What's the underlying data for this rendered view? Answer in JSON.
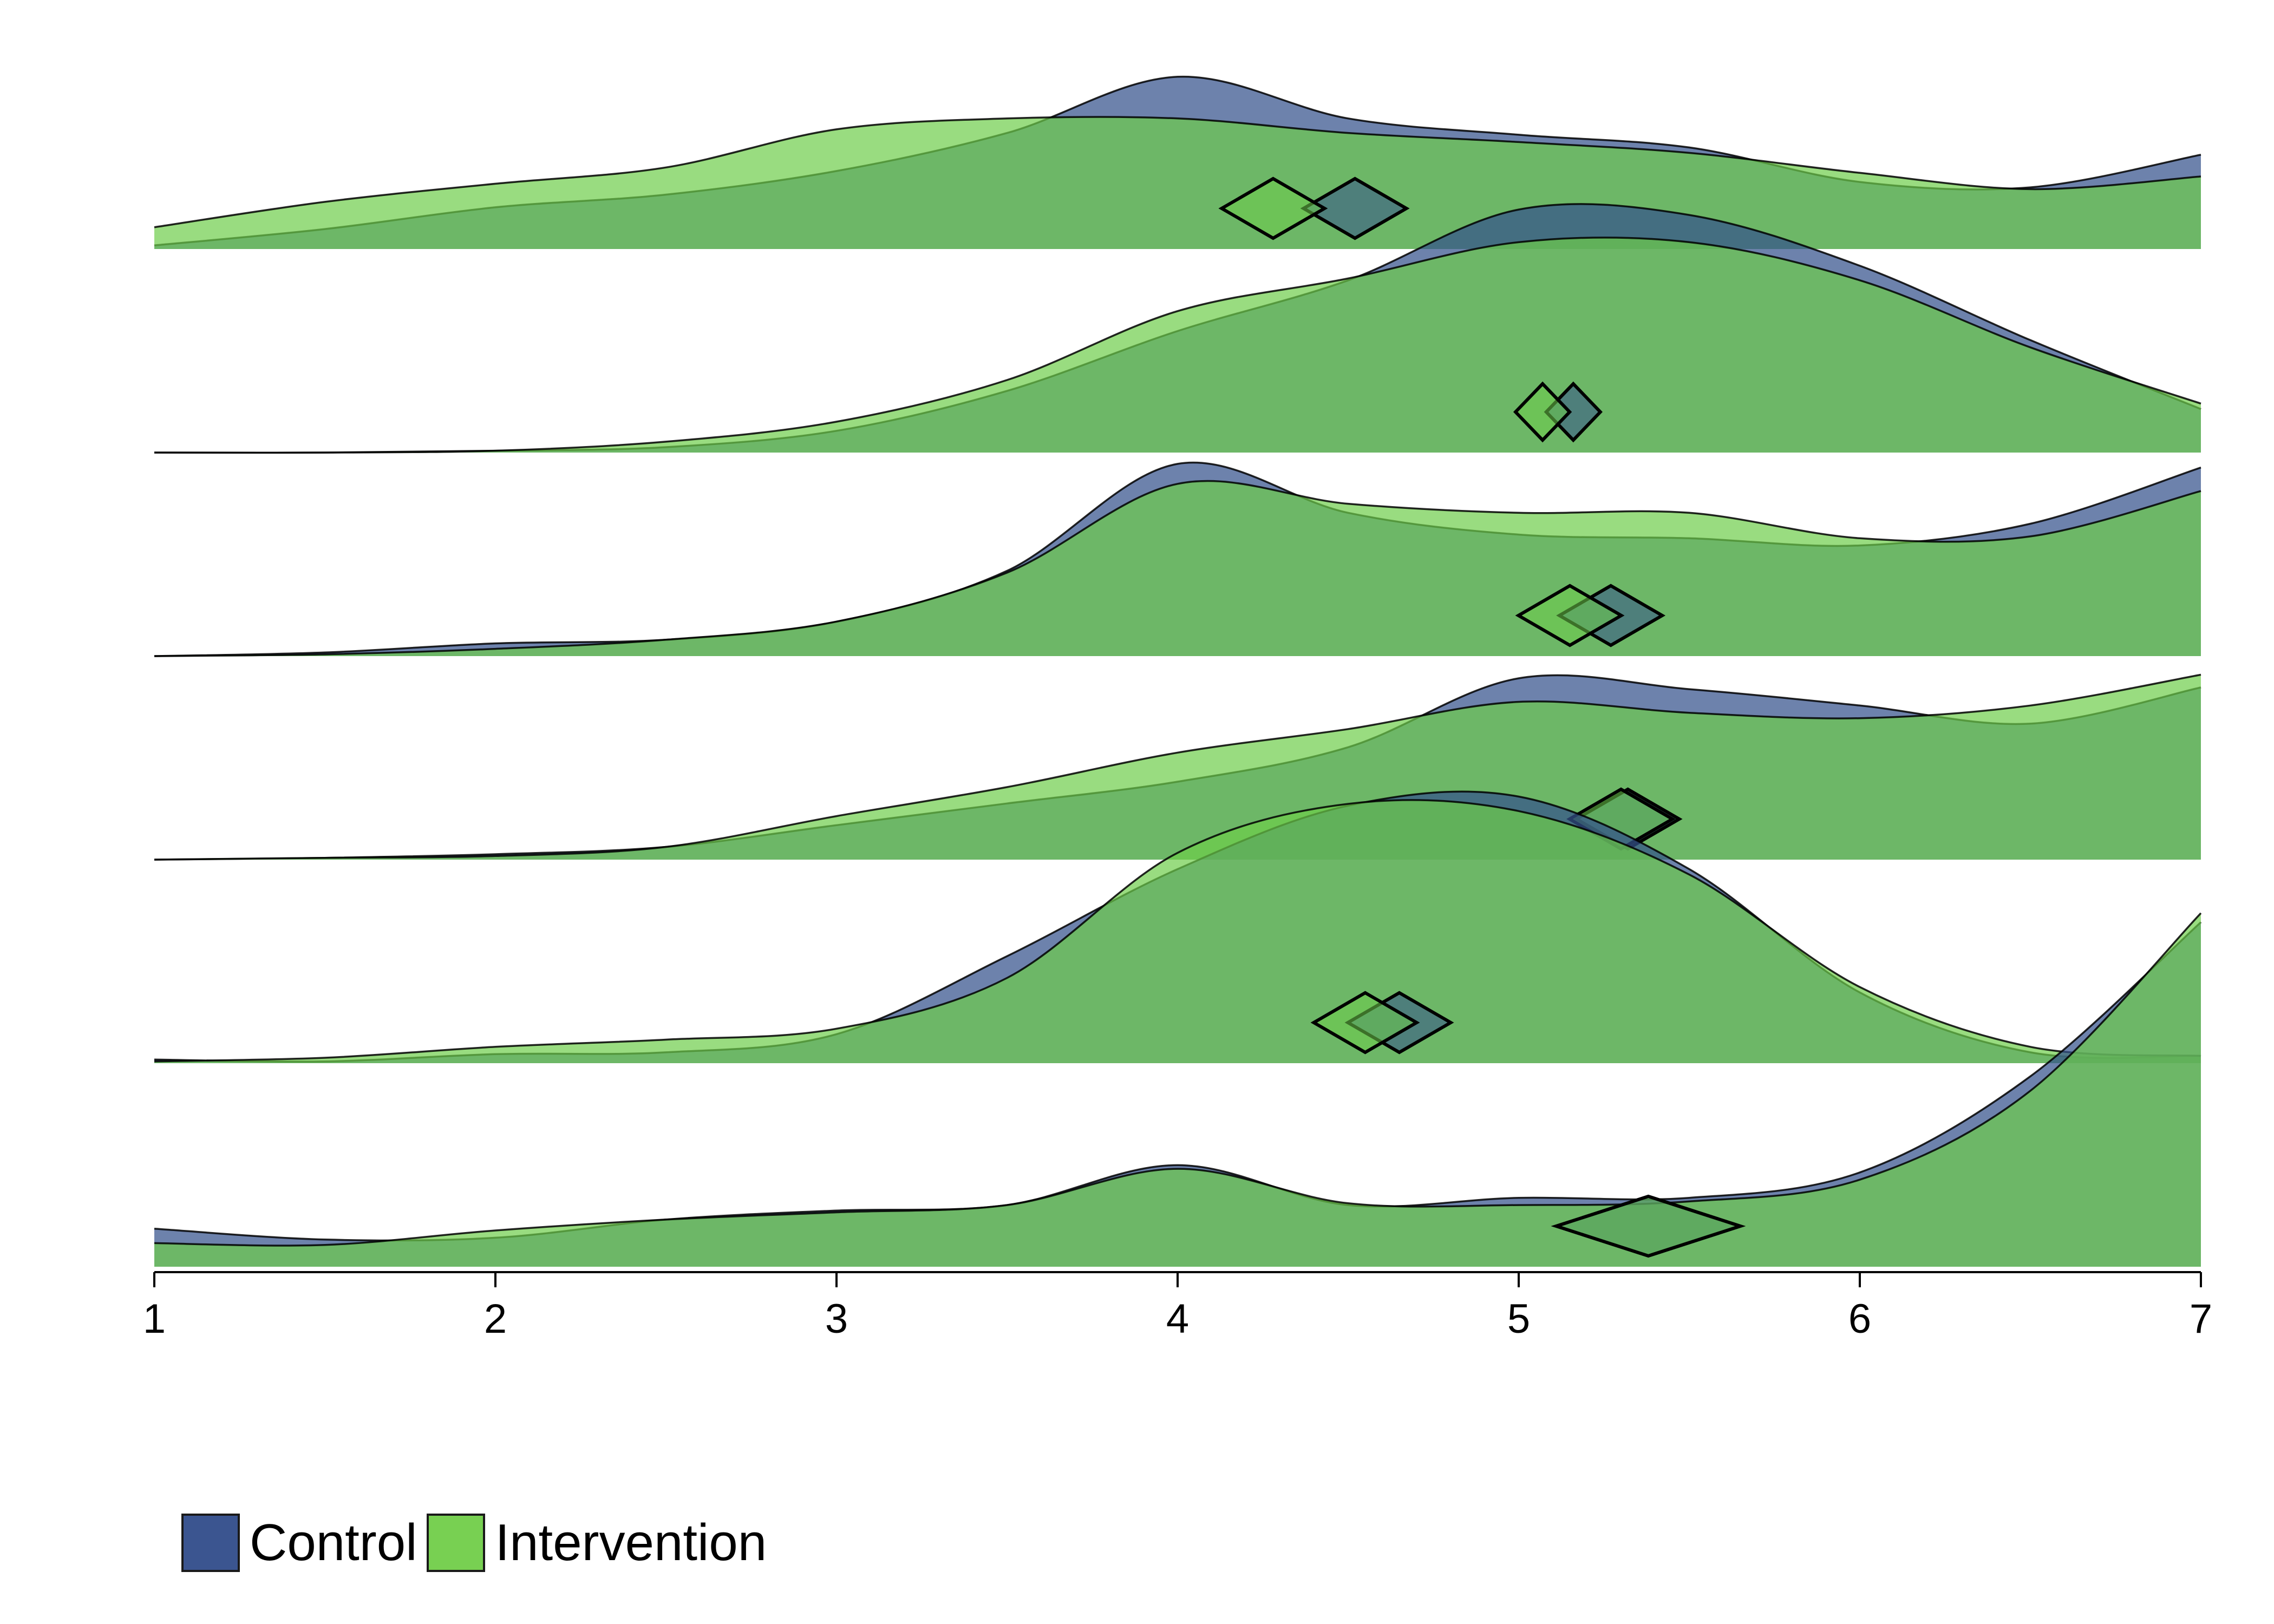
{
  "chart_data": {
    "type": "area",
    "title": "",
    "xlabel": "",
    "ylabel": "",
    "xlim": [
      1,
      7
    ],
    "x_ticks": [
      "1",
      "2",
      "3",
      "4",
      "5",
      "6",
      "7"
    ],
    "grid": false,
    "legend_position": "bottom-left",
    "colors": {
      "Control": "#35528c",
      "Intervention": "#6dcd4a"
    },
    "legend": [
      {
        "name": "Control",
        "color": "#3b5590"
      },
      {
        "name": "Intervention",
        "color": "#78d052"
      }
    ],
    "x": [
      1,
      1.5,
      2,
      2.5,
      3,
      3.5,
      4,
      4.5,
      5,
      5.5,
      6,
      6.5,
      7
    ],
    "ridges": [
      {
        "series": [
          {
            "name": "Control",
            "density": [
              0.02,
              0.11,
              0.23,
              0.3,
              0.43,
              0.64,
              0.95,
              0.72,
              0.63,
              0.56,
              0.37,
              0.34,
              0.52
            ],
            "mean": 4.52
          },
          {
            "name": "Intervention",
            "density": [
              0.12,
              0.26,
              0.36,
              0.45,
              0.66,
              0.72,
              0.72,
              0.64,
              0.59,
              0.53,
              0.42,
              0.33,
              0.4
            ],
            "mean": 4.28
          }
        ]
      },
      {
        "series": [
          {
            "name": "Control",
            "density": [
              0.0,
              0.0,
              0.01,
              0.03,
              0.12,
              0.34,
              0.67,
              0.95,
              1.34,
              1.31,
              1.03,
              0.62,
              0.24
            ],
            "mean": 5.16
          },
          {
            "name": "Intervention",
            "density": [
              0.0,
              0.0,
              0.01,
              0.06,
              0.17,
              0.4,
              0.78,
              0.96,
              1.16,
              1.16,
              0.95,
              0.58,
              0.27
            ],
            "mean": 5.07
          }
        ]
      },
      {
        "series": [
          {
            "name": "Control",
            "density": [
              0.0,
              0.02,
              0.07,
              0.09,
              0.19,
              0.47,
              1.06,
              0.79,
              0.67,
              0.65,
              0.61,
              0.73,
              1.04
            ],
            "mean": 5.27
          },
          {
            "name": "Intervention",
            "density": [
              0.0,
              0.01,
              0.04,
              0.09,
              0.19,
              0.46,
              0.95,
              0.84,
              0.79,
              0.79,
              0.65,
              0.66,
              0.91
            ],
            "mean": 5.15
          }
        ]
      },
      {
        "series": [
          {
            "name": "Control",
            "density": [
              0.0,
              0.01,
              0.03,
              0.07,
              0.19,
              0.31,
              0.43,
              0.62,
              1.0,
              0.94,
              0.85,
              0.75,
              0.95
            ],
            "mean": 5.32
          },
          {
            "name": "Intervention",
            "density": [
              0.0,
              0.01,
              0.02,
              0.07,
              0.24,
              0.4,
              0.59,
              0.72,
              0.87,
              0.81,
              0.78,
              0.85,
              1.02
            ],
            "mean": 5.3
          }
        ]
      },
      {
        "series": [
          {
            "name": "Control",
            "density": [
              0.02,
              0.01,
              0.05,
              0.06,
              0.16,
              0.59,
              1.07,
              1.42,
              1.47,
              1.07,
              0.39,
              0.06,
              0.04
            ],
            "mean": 4.65
          },
          {
            "name": "Intervention",
            "density": [
              0.01,
              0.03,
              0.09,
              0.13,
              0.19,
              0.47,
              1.16,
              1.43,
              1.39,
              1.04,
              0.42,
              0.09,
              0.04
            ],
            "mean": 4.55
          }
        ]
      },
      {
        "series": [
          {
            "name": "Control",
            "density": [
              0.21,
              0.15,
              0.16,
              0.26,
              0.31,
              0.34,
              0.56,
              0.34,
              0.38,
              0.38,
              0.52,
              1.05,
              1.9
            ],
            "mean": 5.38
          },
          {
            "name": "Intervention",
            "density": [
              0.13,
              0.12,
              0.2,
              0.26,
              0.3,
              0.34,
              0.54,
              0.35,
              0.34,
              0.36,
              0.48,
              0.97,
              1.95
            ],
            "mean": 5.38
          }
        ]
      }
    ]
  }
}
